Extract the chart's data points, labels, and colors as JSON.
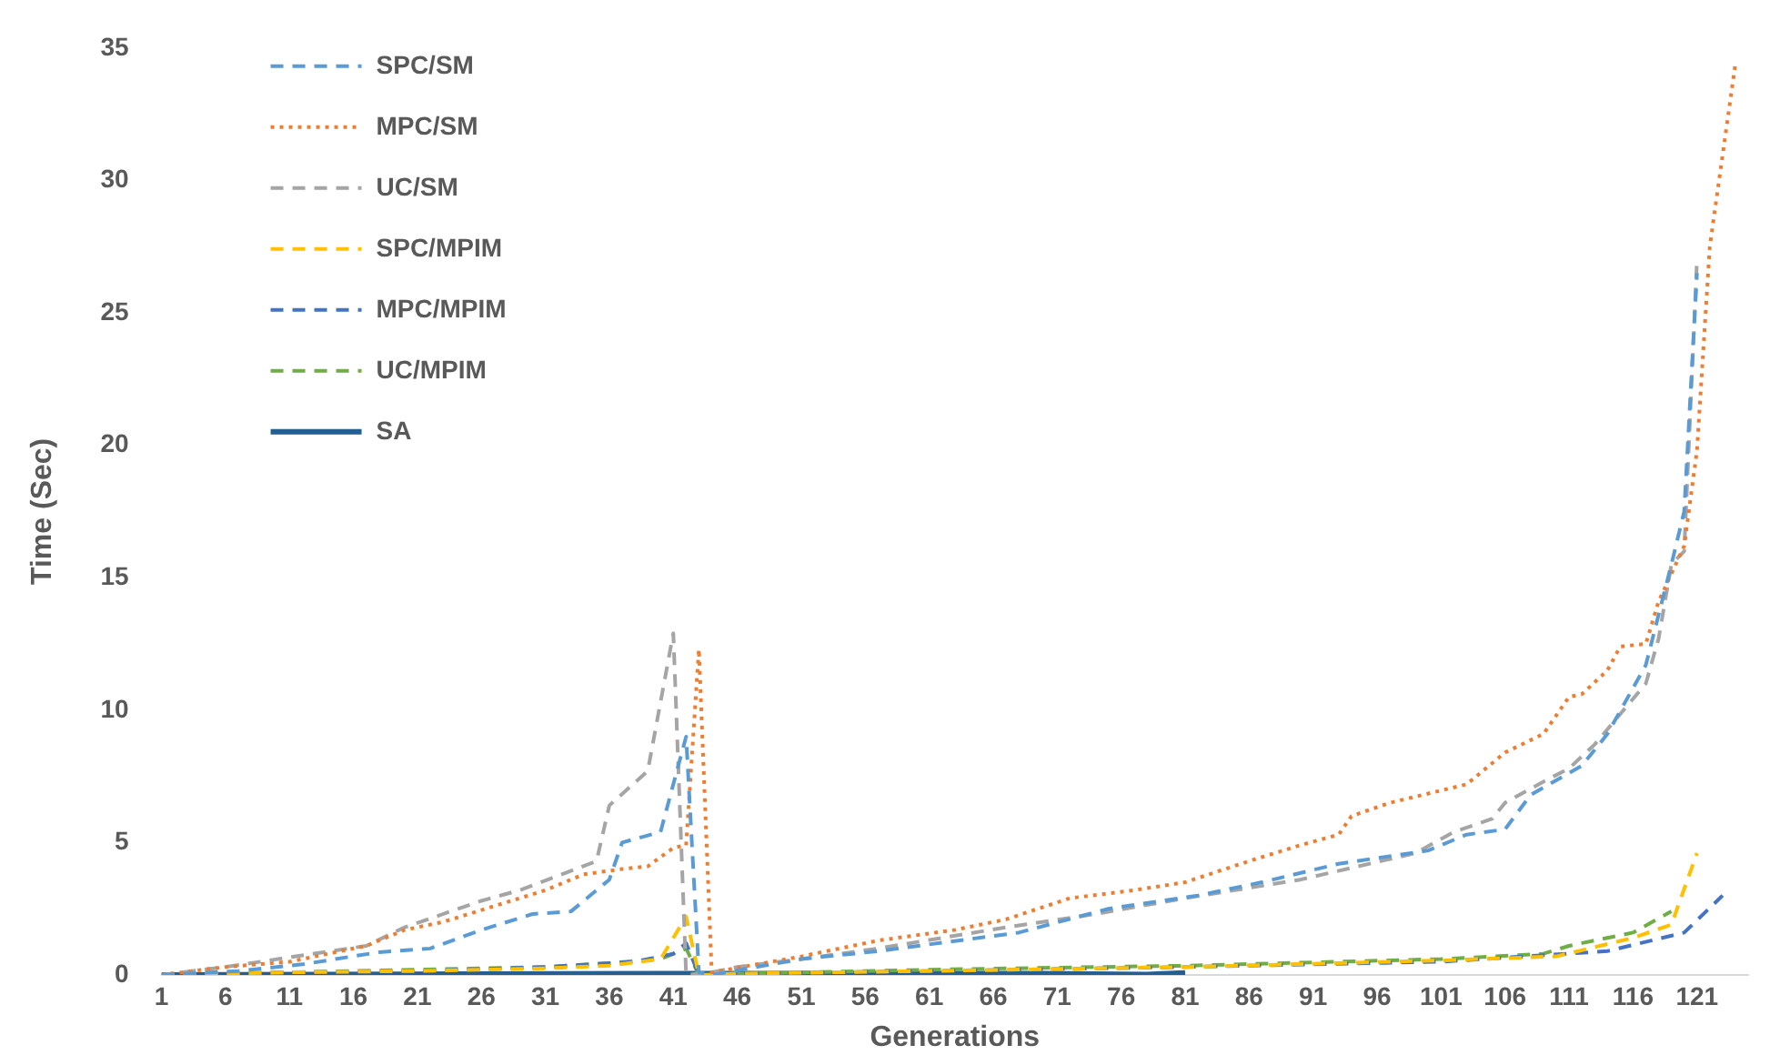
{
  "chart_data": {
    "type": "line",
    "xlabel": "Generations",
    "ylabel": "Time (Sec)",
    "xlim": [
      1,
      125
    ],
    "xticks": [
      1,
      6,
      11,
      16,
      21,
      26,
      31,
      36,
      41,
      46,
      51,
      56,
      61,
      66,
      71,
      76,
      81,
      86,
      91,
      96,
      101,
      106,
      111,
      116,
      121
    ],
    "ylim": [
      0,
      35
    ],
    "yticks": [
      0,
      5,
      10,
      15,
      20,
      25,
      30,
      35
    ],
    "grid": false,
    "legend": "top left",
    "marker": "none",
    "series": [
      {
        "name": "SPC/SM",
        "color": "#5b9bd5",
        "line_style": "dashed",
        "x": [
          1,
          7,
          12,
          18,
          22,
          26,
          30,
          33,
          35,
          36,
          37,
          40,
          42,
          43,
          44,
          51,
          57,
          68,
          75,
          82,
          87,
          93,
          100,
          103,
          106,
          108,
          112,
          114,
          117,
          119,
          120,
          121
        ],
        "values": [
          0,
          0.15,
          0.4,
          0.86,
          1.0,
          1.7,
          2.3,
          2.4,
          3.2,
          3.6,
          5.0,
          5.4,
          9.0,
          0.1,
          0,
          0.6,
          0.9,
          1.6,
          2.5,
          3.0,
          3.5,
          4.2,
          4.7,
          5.3,
          5.5,
          6.8,
          7.9,
          9.1,
          11.7,
          15.5,
          17.5,
          26.5
        ]
      },
      {
        "name": "MPC/SM",
        "color": "#ed7d31",
        "line_style": "dotted",
        "x": [
          1,
          6,
          11,
          17,
          20,
          23,
          27,
          31,
          34,
          37,
          39,
          41,
          42,
          43,
          44,
          51,
          57,
          63,
          67,
          72,
          77,
          81,
          86,
          90,
          93,
          94,
          97,
          103,
          106,
          109,
          111,
          112,
          114,
          115,
          117,
          118,
          120,
          121,
          122,
          124
        ],
        "values": [
          0,
          0.3,
          0.5,
          1.1,
          1.7,
          2.0,
          2.6,
          3.2,
          3.8,
          4.0,
          4.1,
          4.8,
          4.9,
          12.3,
          0.1,
          0.7,
          1.3,
          1.7,
          2.1,
          2.9,
          3.2,
          3.5,
          4.3,
          4.9,
          5.3,
          6.0,
          6.5,
          7.2,
          8.4,
          9.1,
          10.5,
          10.6,
          11.5,
          12.4,
          12.5,
          14.1,
          16.2,
          19.8,
          27.5,
          34.4
        ]
      },
      {
        "name": "UC/SM",
        "color": "#a5a5a5",
        "line_style": "dashed",
        "x": [
          1,
          6,
          12,
          17,
          20,
          26,
          29,
          35,
          36,
          39,
          41,
          42,
          44,
          46,
          51,
          57,
          67,
          74,
          81,
          90,
          99,
          102,
          105,
          106,
          109,
          111,
          113,
          117,
          118,
          119,
          120,
          121
        ],
        "values": [
          0,
          0.3,
          0.74,
          1.1,
          1.8,
          2.8,
          3.2,
          4.3,
          6.4,
          7.7,
          12.9,
          0,
          0.1,
          0.3,
          0.6,
          1.0,
          1.8,
          2.3,
          2.9,
          3.6,
          4.6,
          5.4,
          5.9,
          6.5,
          7.3,
          7.8,
          8.7,
          11.0,
          12.7,
          15.5,
          16.0,
          27.0
        ]
      },
      {
        "name": "SPC/MPIM",
        "color": "#ffc000",
        "line_style": "dashed",
        "x": [
          1,
          11,
          21,
          31,
          36,
          40,
          42,
          43,
          46,
          61,
          81,
          101,
          110,
          116,
          119,
          121
        ],
        "values": [
          0,
          0.1,
          0.15,
          0.25,
          0.35,
          0.6,
          2.2,
          0,
          0.05,
          0.15,
          0.3,
          0.55,
          0.7,
          1.4,
          1.9,
          4.6
        ]
      },
      {
        "name": "MPC/MPIM",
        "color": "#4472c4",
        "line_style": "dashed",
        "x": [
          1,
          11,
          21,
          31,
          38,
          41,
          42,
          43,
          46,
          61,
          81,
          101,
          114,
          120,
          123
        ],
        "values": [
          0,
          0.1,
          0.15,
          0.3,
          0.5,
          0.8,
          1.2,
          0,
          0.05,
          0.15,
          0.3,
          0.5,
          0.9,
          1.6,
          3.0
        ]
      },
      {
        "name": "UC/MPIM",
        "color": "#70ad47",
        "line_style": "dashed",
        "x": [
          1,
          11,
          21,
          31,
          36,
          40,
          42,
          43,
          46,
          61,
          81,
          101,
          109,
          111,
          116,
          119
        ],
        "values": [
          0,
          0.1,
          0.2,
          0.3,
          0.45,
          0.6,
          1.0,
          0,
          0.05,
          0.2,
          0.35,
          0.6,
          0.8,
          1.1,
          1.6,
          2.4
        ]
      },
      {
        "name": "SA",
        "color": "#255e91",
        "line_style": "solid",
        "x": [
          1,
          20,
          40,
          60,
          70,
          78,
          81
        ],
        "values": [
          0,
          0.03,
          0.05,
          0.05,
          0.05,
          0.02,
          0.08
        ]
      }
    ]
  }
}
